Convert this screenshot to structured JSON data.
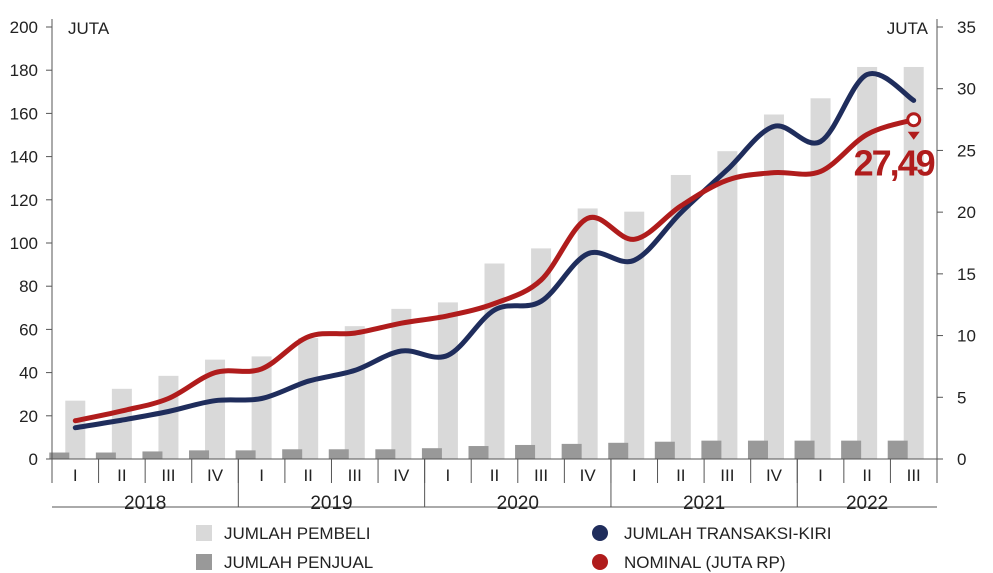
{
  "chart_data": {
    "type": "bar+line",
    "left_axis": {
      "unit_label": "JUTA",
      "ticks": [
        0,
        20,
        40,
        60,
        80,
        100,
        120,
        140,
        160,
        180,
        200
      ],
      "range": [
        0,
        200
      ]
    },
    "right_axis": {
      "unit_label": "JUTA",
      "ticks": [
        0,
        5,
        10,
        15,
        20,
        25,
        30,
        35
      ],
      "range": [
        0,
        35
      ]
    },
    "quarters": [
      "I",
      "II",
      "III",
      "IV",
      "I",
      "II",
      "III",
      "IV",
      "I",
      "II",
      "III",
      "IV",
      "I",
      "II",
      "III",
      "IV",
      "I",
      "II",
      "III"
    ],
    "years": [
      {
        "label": "2018",
        "quarters": 4
      },
      {
        "label": "2019",
        "quarters": 4
      },
      {
        "label": "2020",
        "quarters": 4
      },
      {
        "label": "2021",
        "quarters": 4
      },
      {
        "label": "2022",
        "quarters": 3
      }
    ],
    "series": [
      {
        "name": "JUMLAH PEMBELI",
        "kind": "bar",
        "axis": "left",
        "color": "#d9d9d9",
        "values": [
          27,
          32.5,
          38.5,
          46,
          47.5,
          56,
          61.5,
          69.5,
          72.5,
          90.5,
          97.5,
          116,
          114.5,
          131.5,
          142.5,
          159.5,
          167,
          181.5,
          181.5
        ]
      },
      {
        "name": "JUMLAH PENJUAL",
        "kind": "bar",
        "axis": "left",
        "color": "#999999",
        "values": [
          3,
          3,
          3.5,
          4,
          4,
          4.5,
          4.5,
          4.5,
          5,
          6,
          6.5,
          7,
          7.5,
          8,
          8.5,
          8.5,
          8.5,
          8.5,
          8.5
        ]
      },
      {
        "name": "JUMLAH TRANSAKSI-KIRI",
        "kind": "line",
        "axis": "left",
        "color": "#1f2d5c",
        "values": [
          14.5,
          18,
          22,
          27,
          28,
          36,
          41,
          50,
          48,
          69,
          73,
          95,
          92,
          114,
          134,
          154,
          147,
          178,
          166
        ]
      },
      {
        "name": "NOMINAL (JUTA RP)",
        "kind": "line",
        "axis": "right",
        "color": "#b01c1c",
        "values": [
          3.1,
          3.9,
          4.9,
          7,
          7.3,
          9.9,
          10.2,
          11,
          11.6,
          12.6,
          14.5,
          19.5,
          17.8,
          20.5,
          22.6,
          23.2,
          23.3,
          26.3,
          27.49
        ]
      }
    ],
    "annotation": {
      "text": "27,49",
      "series": "NOMINAL (JUTA RP)",
      "quarter_index": 18
    }
  }
}
